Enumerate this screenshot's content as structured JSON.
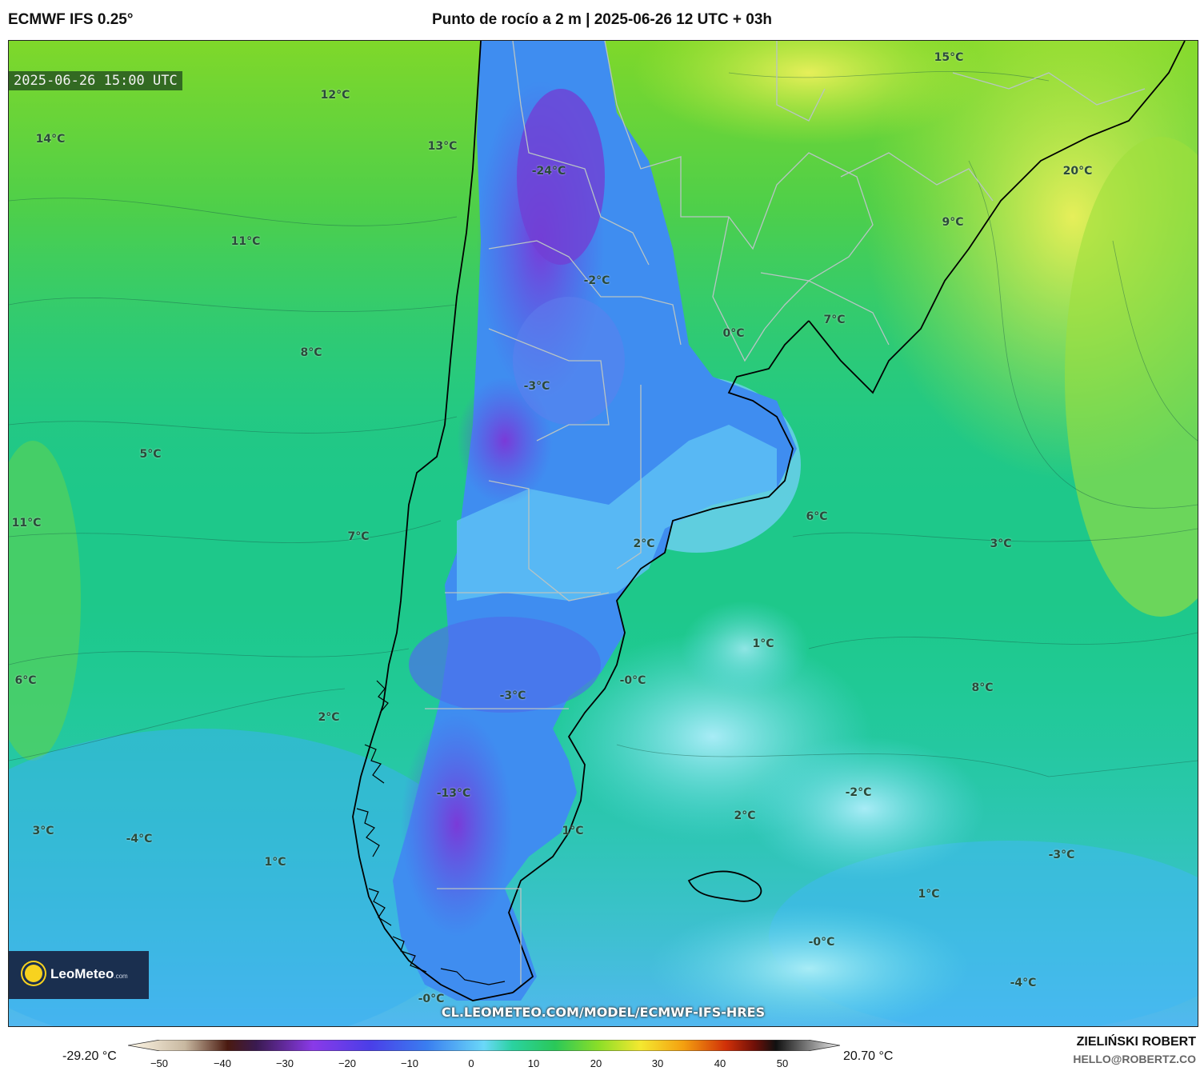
{
  "header": {
    "model": "ECMWF IFS 0.25°",
    "title": "Punto de rocío a 2 m | 2025-06-26 12 UTC + 03h"
  },
  "map": {
    "valid_time": "2025-06-26 15:00 UTC",
    "url": "CL.LEOMETEO.COM/MODEL/ECMWF-IFS-HRES",
    "labels": [
      "12°C",
      "14°C",
      "13°C",
      "-24°C",
      "15°C",
      "20°C",
      "11°C",
      "9°C",
      "-2°C",
      "8°C",
      "0°C",
      "7°C",
      "-3°C",
      "5°C",
      "11°C",
      "7°C",
      "6°C",
      "3°C",
      "2°C",
      "1°C",
      "6°C",
      "-0°C",
      "8°C",
      "2°C",
      "-3°C",
      "-13°C",
      "-2°C",
      "2°C",
      "3°C",
      "-4°C",
      "1°C",
      "1°C",
      "-3°C",
      "1°C",
      "-0°C",
      "-4°C",
      "-0°C"
    ],
    "logo": {
      "name": "LeoMeteo",
      "domain": ".com"
    }
  },
  "colorbar": {
    "min_label": "-29.20 °C",
    "max_label": "20.70 °C",
    "ticks": [
      "−50",
      "−40",
      "−30",
      "−20",
      "−10",
      "0",
      "10",
      "20",
      "30",
      "40",
      "50"
    ]
  },
  "credit": {
    "author": "ZIELIŃSKI ROBERT",
    "email": "HELLO@ROBERTZ.CO"
  }
}
